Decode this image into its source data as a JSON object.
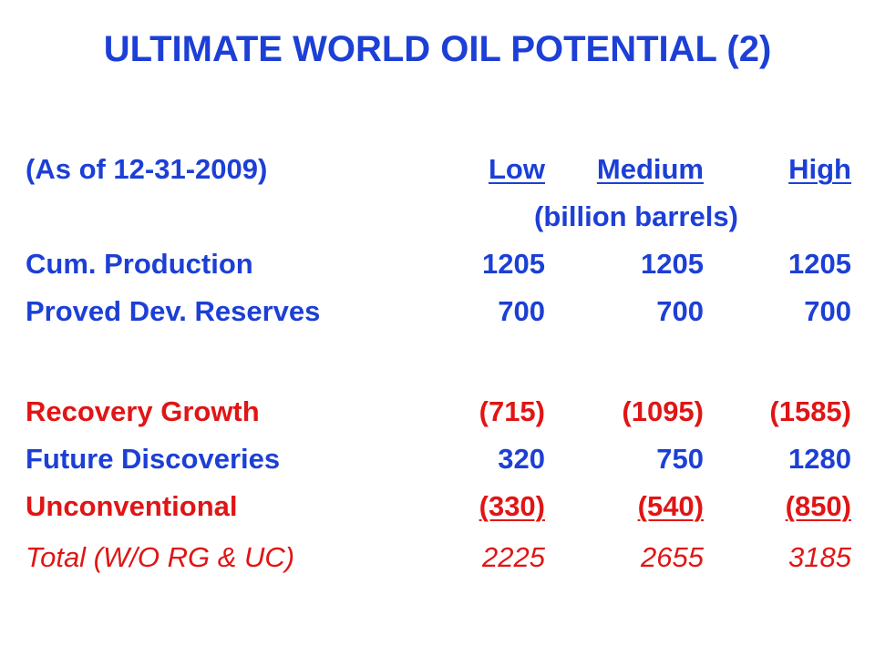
{
  "title": "ULTIMATE WORLD OIL POTENTIAL (2)",
  "header": {
    "as_of": "(As of 12-31-2009)",
    "columns": [
      "Low",
      "Medium",
      "High"
    ],
    "units": "(billion barrels)"
  },
  "rows": [
    {
      "label": "Cum. Production",
      "low": "1205",
      "medium": "1205",
      "high": "1205"
    },
    {
      "label": "Proved Dev. Reserves",
      "low": "700",
      "medium": "700",
      "high": "700"
    },
    {
      "label": "Recovery Growth",
      "low": "(715)",
      "medium": "(1095)",
      "high": "(1585)"
    },
    {
      "label": "Future Discoveries",
      "low": "320",
      "medium": "750",
      "high": "1280"
    },
    {
      "label": "Unconventional",
      "low": "(330)",
      "medium": "(540)",
      "high": "(850)"
    },
    {
      "label": "Total (W/O RG & UC)",
      "low": "2225",
      "medium": "2655",
      "high": "3185"
    }
  ],
  "colors": {
    "blue_text": "#1c3fd6",
    "red_text": "#e01515",
    "background": "#ffffff"
  }
}
